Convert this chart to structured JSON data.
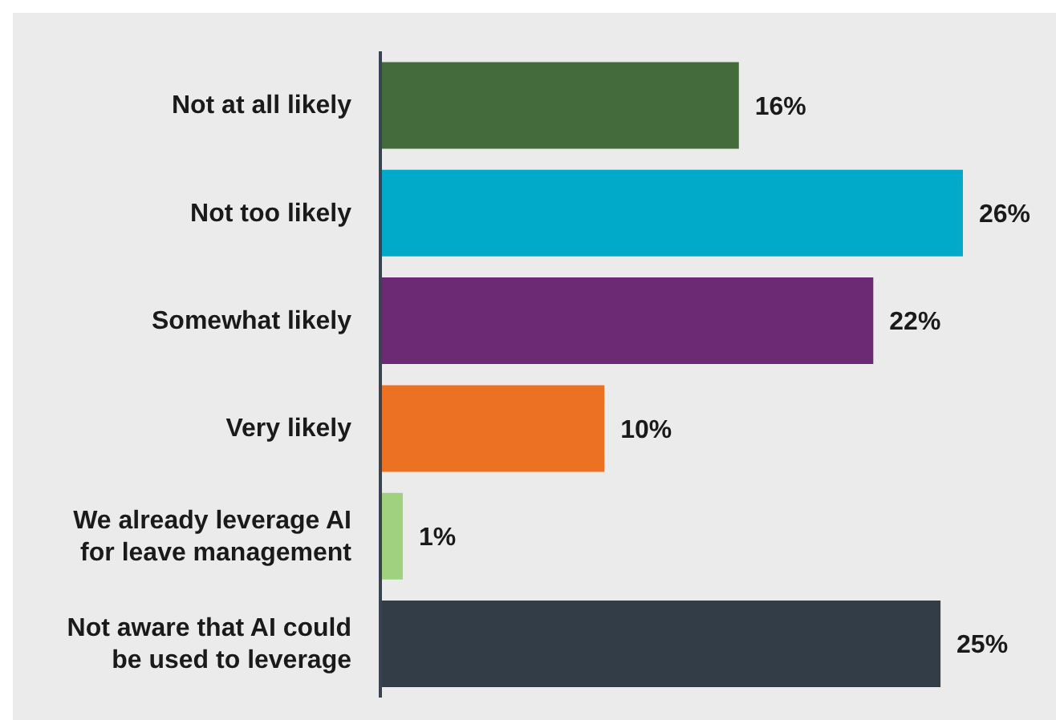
{
  "chart_data": {
    "type": "bar",
    "orientation": "horizontal",
    "categories": [
      "Not at all likely",
      "Not too likely",
      "Somewhat likely",
      "Very likely",
      "We already leverage AI for leave management",
      "Not aware that AI could be used to leverage"
    ],
    "values": [
      16,
      26,
      22,
      10,
      1,
      25
    ],
    "value_labels": [
      "16%",
      "26%",
      "22%",
      "10%",
      "1%",
      "25%"
    ],
    "colors": [
      "#436b3c",
      "#00aac8",
      "#6c2a75",
      "#ec7123",
      "#9fd17f",
      "#323d48"
    ]
  }
}
